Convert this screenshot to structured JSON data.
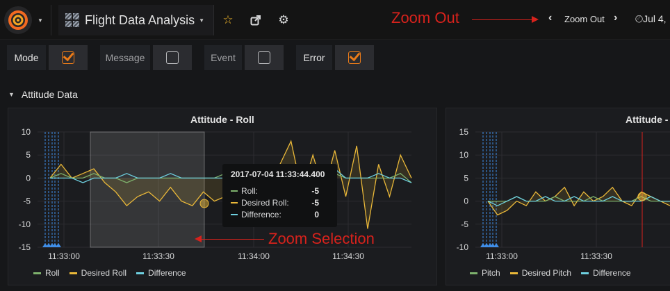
{
  "navbar": {
    "dashboard_title": "Flight Data Analysis",
    "zoom_out_label": "Zoom Out",
    "time_range": "Jul 4,"
  },
  "annotations": {
    "zoom_out": "Zoom Out",
    "zoom_selection": "Zoom Selection"
  },
  "variables": [
    {
      "label": "Mode",
      "checked": true
    },
    {
      "label": "Message",
      "checked": false
    },
    {
      "label": "Event",
      "checked": false
    },
    {
      "label": "Error",
      "checked": true
    }
  ],
  "row": {
    "title": "Attitude Data"
  },
  "colors": {
    "green": "#7eb26d",
    "yellow": "#eab839",
    "blue": "#6ed0e0",
    "orange": "#eb7b18",
    "annotation_red": "#d7221c",
    "marker_blue": "#3f8ee8"
  },
  "panels": [
    {
      "title": "Attitude - Roll",
      "legend": [
        "Roll",
        "Desired Roll",
        "Difference"
      ],
      "tooltip": {
        "time": "2017-07-04 11:33:44.400",
        "rows": [
          {
            "name": "Roll:",
            "value": "-5"
          },
          {
            "name": "Desired Roll:",
            "value": "-5"
          },
          {
            "name": "Difference:",
            "value": "0"
          }
        ]
      }
    },
    {
      "title": "Attitude -",
      "legend": [
        "Pitch",
        "Desired Pitch",
        "Difference"
      ]
    }
  ],
  "chart_data": [
    {
      "type": "line",
      "title": "Attitude - Roll",
      "y_ticks": [
        "10",
        "5",
        "0",
        "-5",
        "-10",
        "-15"
      ],
      "ylim": [
        -15,
        10
      ],
      "x_ticks": [
        "11:33:00",
        "11:33:30",
        "11:34:00",
        "11:34:30"
      ],
      "series": [
        {
          "name": "Roll",
          "values": [
            0,
            1,
            0,
            0,
            1,
            0,
            0,
            -1,
            0,
            0,
            0,
            0,
            0,
            0,
            0,
            0,
            1,
            0,
            0,
            0,
            1,
            0,
            1,
            0,
            0,
            0,
            1,
            0,
            0,
            0,
            0,
            0,
            1,
            -1
          ]
        },
        {
          "name": "Desired Roll",
          "values": [
            0,
            3,
            0,
            1,
            2,
            -1,
            -3,
            -6,
            -4,
            -3,
            -5,
            -2,
            -5,
            -6,
            -3,
            -5,
            -4,
            -5,
            0,
            1,
            -2,
            3,
            8,
            -3,
            5,
            -3,
            6,
            -4,
            7,
            -11,
            3,
            -4,
            5,
            0
          ]
        },
        {
          "name": "Difference",
          "values": [
            0,
            0,
            0,
            -1,
            0,
            0,
            0,
            1,
            0,
            0,
            0,
            1,
            0,
            0,
            0,
            0,
            0,
            1,
            0,
            0,
            -2,
            0,
            1,
            0,
            -1,
            0,
            2,
            0,
            0,
            0,
            1,
            0,
            0,
            -1
          ]
        }
      ]
    },
    {
      "type": "line",
      "title": "Attitude -",
      "y_ticks": [
        "15",
        "10",
        "5",
        "0",
        "-5",
        "-10"
      ],
      "ylim": [
        -10,
        15
      ],
      "x_ticks": [
        "11:33:00",
        "11:33:30"
      ],
      "series": [
        {
          "name": "Pitch",
          "values": [
            0,
            0,
            0,
            1,
            0,
            0,
            0,
            1,
            0,
            0,
            0,
            1,
            0,
            0,
            0,
            0,
            1,
            0,
            0,
            0
          ]
        },
        {
          "name": "Desired Pitch",
          "values": [
            0,
            -3,
            -2,
            0,
            -1,
            2,
            0,
            1,
            3,
            -1,
            2,
            0,
            1,
            3,
            0,
            -1,
            2,
            1,
            0,
            -1
          ]
        },
        {
          "name": "Difference",
          "values": [
            0,
            -1,
            0,
            1,
            0,
            0,
            1,
            0,
            0,
            1,
            0,
            0,
            0,
            1,
            0,
            0,
            0,
            1,
            0,
            0
          ]
        }
      ]
    }
  ]
}
